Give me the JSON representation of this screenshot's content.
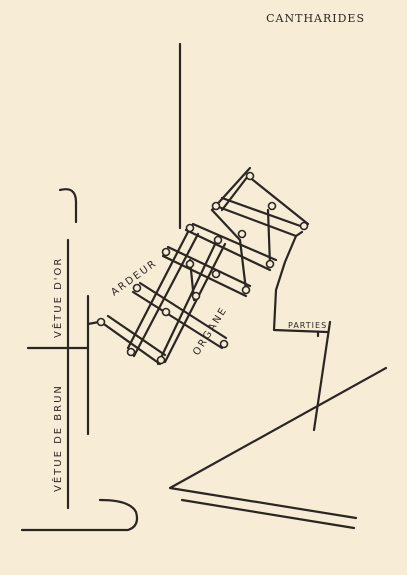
{
  "header": {
    "title": "CANTHARIDES"
  },
  "labels": {
    "vetue_or": "VÊTUE D'OR",
    "vetue_brun": "VÊTUE DE BRUN",
    "ardeur": "ARDEUR",
    "organe": "ORGANE",
    "parties": "PARTIES"
  },
  "colors": {
    "ink": "#2b2622",
    "paper": "#f7ecd6"
  }
}
